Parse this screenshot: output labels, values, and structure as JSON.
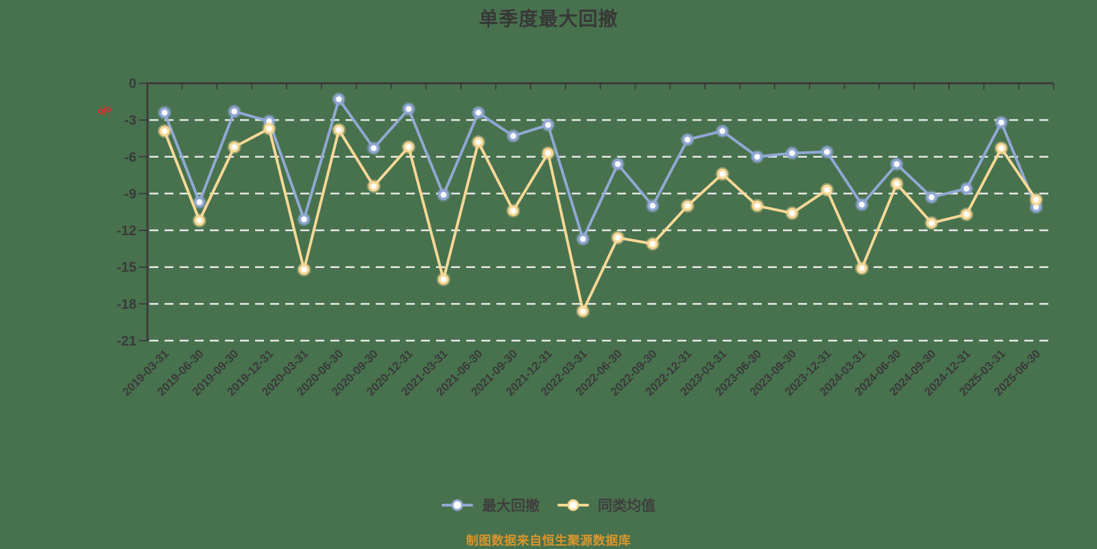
{
  "title": "单季度最大回撤",
  "y_axis_unit": "%",
  "footnote": "制图数据来自恒生聚源数据库",
  "legend": [
    {
      "label": "最大回撤",
      "color": "#92A8D4"
    },
    {
      "label": "同类均值",
      "color": "#F7D896"
    }
  ],
  "chart_data": {
    "type": "line",
    "title": "单季度最大回撤",
    "unit": "%",
    "categories": [
      "2019-03-31",
      "2019-06-30",
      "2019-09-30",
      "2019-12-31",
      "2020-03-31",
      "2020-06-30",
      "2020-09-30",
      "2020-12-31",
      "2021-03-31",
      "2021-06-30",
      "2021-09-30",
      "2021-12-31",
      "2022-03-31",
      "2022-06-30",
      "2022-09-30",
      "2022-12-31",
      "2023-03-31",
      "2023-06-30",
      "2023-09-30",
      "2023-12-31",
      "2024-03-31",
      "2024-06-30",
      "2024-09-30",
      "2024-12-31",
      "2025-03-31",
      "2025-06-30"
    ],
    "series": [
      {
        "name": "最大回撤",
        "color": "#92A8D4",
        "values": [
          -2.4,
          -9.7,
          -2.3,
          -3.1,
          -11.1,
          -1.3,
          -5.3,
          -2.1,
          -9.1,
          -2.4,
          -4.3,
          -3.4,
          -12.7,
          -6.6,
          -10.0,
          -4.6,
          -3.9,
          -6.0,
          -5.7,
          -5.6,
          -9.9,
          -6.6,
          -9.3,
          -8.6,
          -3.2,
          -10.1
        ]
      },
      {
        "name": "同类均值",
        "color": "#F7D896",
        "values": [
          -3.9,
          -11.2,
          -5.2,
          -3.7,
          -15.2,
          -3.8,
          -8.4,
          -5.2,
          -16.0,
          -4.8,
          -10.4,
          -5.7,
          -18.6,
          -12.6,
          -13.1,
          -10.0,
          -7.4,
          -10.0,
          -10.6,
          -8.7,
          -15.1,
          -8.2,
          -11.4,
          -10.7,
          -5.3,
          -9.5
        ]
      }
    ],
    "ylim": [
      -21,
      0
    ],
    "y_ticks": [
      0,
      -3,
      -6,
      -9,
      -12,
      -15,
      -18,
      -21
    ],
    "grid": "horizontal-dashed",
    "legend_position": "bottom",
    "x_label_rotation": -45
  },
  "colors": {
    "background": "#48724E",
    "axis": "#3C3C3C",
    "grid": "#E9E9E9",
    "label": "#3A3A3A",
    "title": "#383838",
    "legend_text": "#3F3F3F",
    "footnote": "#D6952E",
    "unit": "#DF2B2B"
  }
}
